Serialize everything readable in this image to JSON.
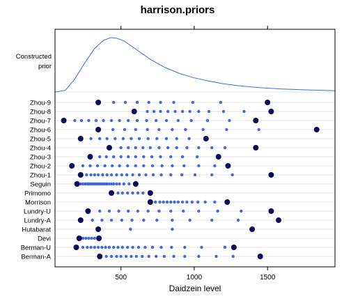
{
  "chart_data": {
    "type": "scatter",
    "title": "harrison.priors",
    "xlabel": "Daidzein level",
    "ylabel": "",
    "xlim": [
      50,
      1960
    ],
    "x_ticks": [
      500,
      1000,
      1500
    ],
    "prior_label": [
      "Constructed",
      "prior"
    ],
    "prior_curve": {
      "x": [
        50,
        120,
        180,
        250,
        320,
        380,
        430,
        470,
        520,
        600,
        700,
        800,
        900,
        1000,
        1100,
        1200,
        1300,
        1400,
        1500,
        1600,
        1700,
        1800,
        1960
      ],
      "density": [
        0.0,
        0.03,
        0.22,
        0.52,
        0.8,
        0.95,
        1.0,
        0.99,
        0.94,
        0.79,
        0.6,
        0.45,
        0.34,
        0.26,
        0.2,
        0.15,
        0.115,
        0.09,
        0.07,
        0.055,
        0.045,
        0.035,
        0.025
      ]
    },
    "categories": [
      "Zhou-9",
      "Zhou-8",
      "Zhou-7",
      "Zhou-6",
      "Zhou-5",
      "Zhou-4",
      "Zhou-3",
      "Zhou-2",
      "Zhou-1",
      "Seguin",
      "Primomo",
      "Morrison",
      "Lundry-U",
      "Lundry-A",
      "Hutabarat",
      "Devi",
      "Berman-U",
      "Berman-A"
    ],
    "series": [
      {
        "name": "Zhou-9",
        "min": 345,
        "max": 1500,
        "points": [
          450,
          530,
          610,
          690,
          770,
          860,
          990,
          1180
        ]
      },
      {
        "name": "Zhou-8",
        "min": 590,
        "max": 1525,
        "points": [
          680,
          725,
          770,
          820,
          870,
          920,
          970,
          1030,
          1100,
          1200,
          1340
        ]
      },
      {
        "name": "Zhou-7",
        "min": 110,
        "max": 1420,
        "points": [
          185,
          230,
          280,
          330,
          380,
          435,
          490,
          550,
          610,
          675,
          740,
          810,
          890,
          980,
          1090,
          1240
        ]
      },
      {
        "name": "Zhou-6",
        "min": 345,
        "max": 1835,
        "points": [
          445,
          525,
          600,
          680,
          760,
          850,
          940,
          1060,
          1220,
          1440
        ]
      },
      {
        "name": "Zhou-5",
        "min": 225,
        "max": 1080,
        "points": [
          295,
          355,
          405,
          460,
          515,
          570,
          625,
          685,
          745,
          810,
          880,
          965
        ]
      },
      {
        "name": "Zhou-4",
        "min": 420,
        "max": 1420,
        "points": [
          500,
          550,
          600,
          650,
          700,
          760,
          820,
          880,
          950,
          1030,
          1120,
          1210
        ]
      },
      {
        "name": "Zhou-3",
        "min": 290,
        "max": 1165,
        "points": [
          355,
          400,
          450,
          500,
          550,
          600,
          655,
          710,
          770,
          840,
          920,
          1020
        ]
      },
      {
        "name": "Zhou-2",
        "min": 165,
        "max": 1230,
        "points": [
          240,
          290,
          340,
          390,
          440,
          490,
          545,
          600,
          655,
          715,
          780,
          850,
          930,
          1030,
          1140
        ]
      },
      {
        "name": "Zhou-1",
        "min": 225,
        "max": 1525,
        "points": [
          265,
          295,
          320,
          345,
          375,
          405,
          435,
          470,
          505,
          540,
          580,
          625,
          670,
          720,
          775,
          840,
          915,
          1005,
          1120,
          1260
        ]
      },
      {
        "name": "Seguin",
        "min": 200,
        "max": 600,
        "points": [
          225,
          240,
          255,
          265,
          275,
          285,
          295,
          305,
          315,
          325,
          335,
          345,
          355,
          365,
          375,
          385,
          395,
          405,
          420,
          435,
          450,
          470,
          490,
          520,
          555
        ]
      },
      {
        "name": "Primomo",
        "min": 435,
        "max": 700,
        "points": [
          480,
          510,
          545,
          580,
          615,
          650
        ]
      },
      {
        "name": "Morrison",
        "min": 700,
        "max": 1225,
        "points": [
          735,
          765,
          790,
          815,
          840,
          865,
          890,
          920,
          950,
          985,
          1025,
          1075,
          1140
        ]
      },
      {
        "name": "Lundry-U",
        "min": 275,
        "max": 1525,
        "points": [
          355,
          420,
          485,
          550,
          615,
          685,
          760,
          840,
          925,
          1030,
          1160,
          1320
        ]
      },
      {
        "name": "Lundry-A",
        "min": 225,
        "max": 1575,
        "points": [
          305,
          370,
          435,
          505,
          575,
          655,
          745,
          850,
          970,
          1120,
          1300
        ]
      },
      {
        "name": "Hutabarat",
        "min": 345,
        "max": 1395,
        "points": [
          565,
          850
        ]
      },
      {
        "name": "Devi",
        "min": 215,
        "max": 350,
        "points": [
          240,
          260,
          280,
          300,
          320
        ]
      },
      {
        "name": "Berman-U",
        "min": 195,
        "max": 1270,
        "points": [
          240,
          270,
          295,
          320,
          345,
          370,
          395,
          420,
          450,
          480,
          510,
          545,
          580,
          620,
          665,
          715,
          775,
          845,
          935,
          1050,
          1210
        ]
      },
      {
        "name": "Berman-A",
        "min": 355,
        "max": 1450,
        "points": [
          400,
          435,
          470,
          500,
          535,
          570,
          605,
          645,
          690,
          740,
          795,
          860,
          935,
          1030,
          1150,
          1265
        ]
      }
    ],
    "grid": "horizontal reference lines on every row",
    "colors": {
      "points": "#4169e1",
      "extremes": "#0a0a5a",
      "curve": "#3a6fd8",
      "gridlines": "#e6e6e6",
      "frame": "#000000"
    }
  }
}
